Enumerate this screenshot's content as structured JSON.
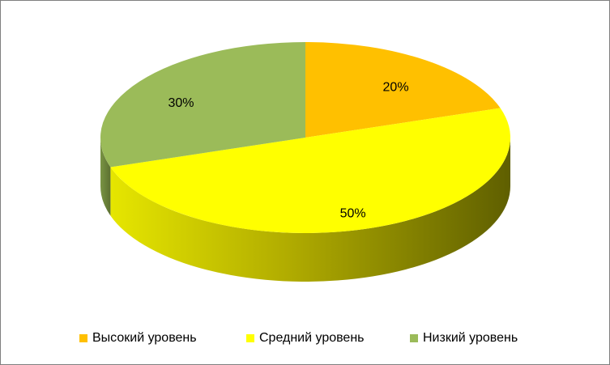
{
  "chart_data": {
    "type": "pie3d",
    "categories": [
      "Высокий уровень",
      "Средний уровень",
      "Низкий уровень"
    ],
    "series": [
      {
        "colors": [
          "#ffc000",
          "#ffff00",
          "#9bbb59"
        ],
        "values": [
          20,
          50,
          30
        ],
        "value_labels": [
          "20%",
          "50%",
          "30%"
        ]
      }
    ],
    "legend": "bottom"
  }
}
